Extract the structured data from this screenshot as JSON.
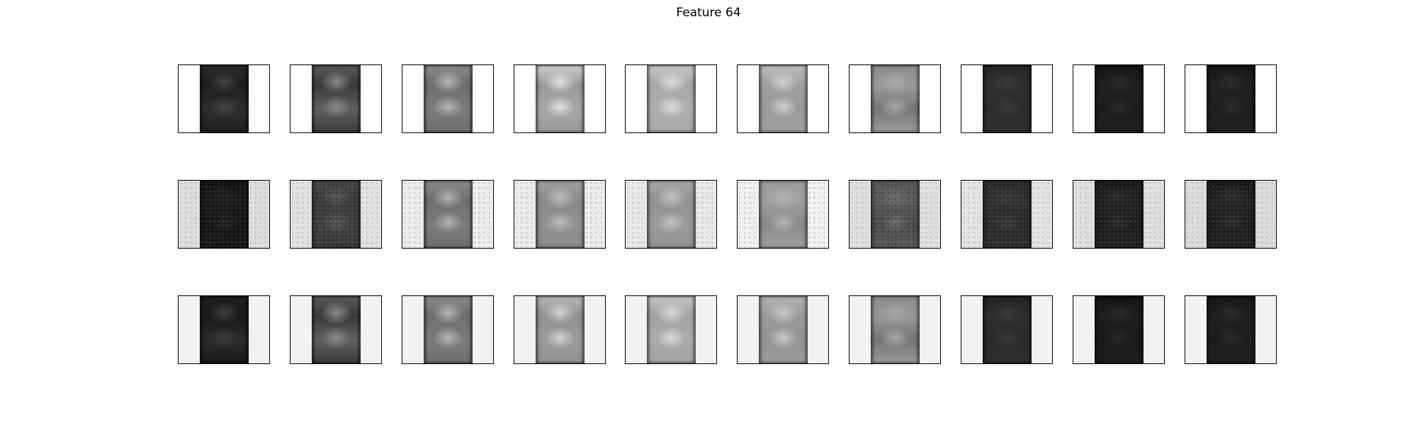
{
  "title": "Feature 64",
  "grid": {
    "rows": [
      {
        "background": "#ffffff",
        "textured_background": false,
        "noisy_bar": false,
        "panels": [
          {
            "top": "#2a2a2a",
            "mid": "#1e1e1e",
            "low": "#2e2e2e",
            "blob": "#444444"
          },
          {
            "top": "#5a5a5a",
            "mid": "#3a3a3a",
            "low": "#606060",
            "blob": "#8a8a8a"
          },
          {
            "top": "#8a8a8a",
            "mid": "#6e6e6e",
            "low": "#7c7c7c",
            "blob": "#b4b4b4"
          },
          {
            "top": "#cfcfcf",
            "mid": "#9a9a9a",
            "low": "#a8a8a8",
            "blob": "#e0e0e0"
          },
          {
            "top": "#c8c8c8",
            "mid": "#a6a6a6",
            "low": "#b0b0b0",
            "blob": "#dcdcdc"
          },
          {
            "top": "#bdbdbd",
            "mid": "#a0a0a0",
            "low": "#9a9a9a",
            "blob": "#cfcfcf"
          },
          {
            "top": "#8c8c8c",
            "mid": "#9a9a9a",
            "low": "#777777",
            "blob": "#a8a8a8"
          },
          {
            "top": "#252525",
            "mid": "#303030",
            "low": "#2c2c2c",
            "blob": "#3a3a3a"
          },
          {
            "top": "#141414",
            "mid": "#202020",
            "low": "#1c1c1c",
            "blob": "#2a2a2a"
          },
          {
            "top": "#161616",
            "mid": "#222222",
            "low": "#1e1e1e",
            "blob": "#2c2c2c"
          }
        ]
      },
      {
        "background": "#e6e6e6",
        "textured_background": true,
        "noisy_bar": true,
        "panels": [
          {
            "top": "#121212",
            "mid": "#1a1a1a",
            "low": "#151515",
            "blob": "#242424",
            "bg": "#dedede",
            "noisy": true
          },
          {
            "top": "#454545",
            "mid": "#3a3a3a",
            "low": "#404040",
            "blob": "#555555",
            "bg": "#e2e2e2",
            "noisy": true
          },
          {
            "top": "#8a8a8a",
            "mid": "#6e6e6e",
            "low": "#7c7c7c",
            "blob": "#b0b0b0",
            "bg": "#eeeeee",
            "noisy": false
          },
          {
            "top": "#a0a0a0",
            "mid": "#8a8a8a",
            "low": "#909090",
            "blob": "#bdbdbd",
            "bg": "#ececec",
            "noisy": false
          },
          {
            "top": "#a8a8a8",
            "mid": "#929292",
            "low": "#9a9a9a",
            "blob": "#c2c2c2",
            "bg": "#eaeaea",
            "noisy": false
          },
          {
            "top": "#9a9a9a",
            "mid": "#a0a0a0",
            "low": "#8a8a8a",
            "blob": "#b2b2b2",
            "bg": "#f2f2f2",
            "noisy": false
          },
          {
            "top": "#555555",
            "mid": "#5a5a5a",
            "low": "#4a4a4a",
            "blob": "#6a6a6a",
            "bg": "#e0e0e0",
            "noisy": true
          },
          {
            "top": "#2a2a2a",
            "mid": "#303030",
            "low": "#2c2c2c",
            "blob": "#3a3a3a",
            "bg": "#e4e4e4",
            "noisy": true
          },
          {
            "top": "#1a1a1a",
            "mid": "#222222",
            "low": "#1e1e1e",
            "blob": "#2c2c2c",
            "bg": "#e0e0e0",
            "noisy": true
          },
          {
            "top": "#1a1a1a",
            "mid": "#242424",
            "low": "#1e1e1e",
            "blob": "#2e2e2e",
            "bg": "#dcdcdc",
            "noisy": true
          }
        ]
      },
      {
        "background": "#f2f2f2",
        "textured_background": false,
        "noisy_bar": false,
        "panels": [
          {
            "top": "#1e1e1e",
            "mid": "#1a1a1a",
            "low": "#2a2a2a",
            "blob": "#3e3e3e"
          },
          {
            "top": "#5a5a5a",
            "mid": "#3a3a3a",
            "low": "#606060",
            "blob": "#8a8a8a"
          },
          {
            "top": "#8a8a8a",
            "mid": "#6e6e6e",
            "low": "#7c7c7c",
            "blob": "#b4b4b4"
          },
          {
            "top": "#b8b8b8",
            "mid": "#909090",
            "low": "#9c9c9c",
            "blob": "#d2d2d2"
          },
          {
            "top": "#c4c4c4",
            "mid": "#a2a2a2",
            "low": "#acacac",
            "blob": "#d8d8d8"
          },
          {
            "top": "#b2b2b2",
            "mid": "#9a9a9a",
            "low": "#959595",
            "blob": "#c8c8c8"
          },
          {
            "top": "#8a8a8a",
            "mid": "#989898",
            "low": "#767676",
            "blob": "#a6a6a6"
          },
          {
            "top": "#222222",
            "mid": "#2e2e2e",
            "low": "#2a2a2a",
            "blob": "#383838"
          },
          {
            "top": "#141414",
            "mid": "#1e1e1e",
            "low": "#1a1a1a",
            "blob": "#282828"
          },
          {
            "top": "#161616",
            "mid": "#202020",
            "low": "#1c1c1c",
            "blob": "#2a2a2a"
          }
        ]
      }
    ]
  }
}
